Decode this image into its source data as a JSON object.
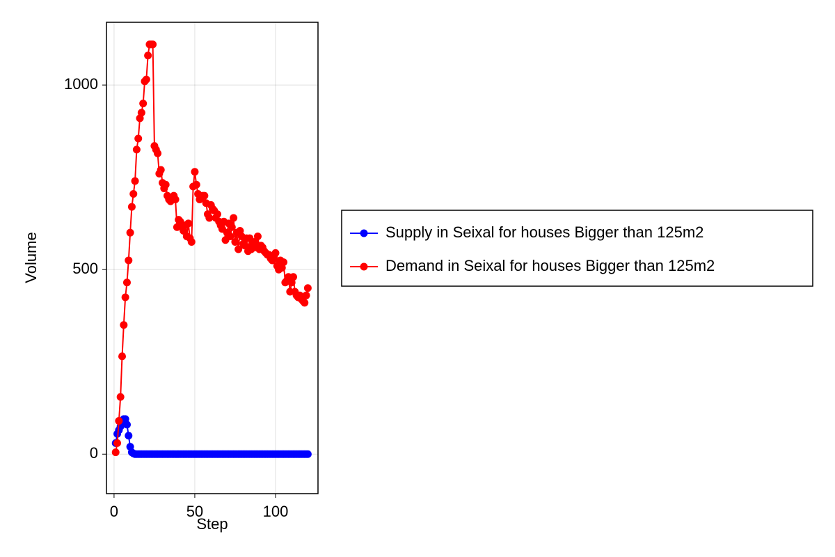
{
  "chart_data": {
    "type": "line",
    "x_label": "Step",
    "y_label": "Volume",
    "x": [
      1,
      2,
      3,
      4,
      5,
      6,
      7,
      8,
      9,
      10,
      11,
      12,
      13,
      14,
      15,
      16,
      17,
      18,
      19,
      20,
      21,
      22,
      23,
      24,
      25,
      26,
      27,
      28,
      29,
      30,
      31,
      32,
      33,
      34,
      35,
      36,
      37,
      38,
      39,
      40,
      41,
      42,
      43,
      44,
      45,
      46,
      47,
      48,
      49,
      50,
      51,
      52,
      53,
      54,
      55,
      56,
      57,
      58,
      59,
      60,
      61,
      62,
      63,
      64,
      65,
      66,
      67,
      68,
      69,
      70,
      71,
      72,
      73,
      74,
      75,
      76,
      77,
      78,
      79,
      80,
      81,
      82,
      83,
      84,
      85,
      86,
      87,
      88,
      89,
      90,
      91,
      92,
      93,
      94,
      95,
      96,
      97,
      98,
      99,
      100,
      101,
      102,
      103,
      104,
      105,
      106,
      107,
      108,
      109,
      110,
      111,
      112,
      113,
      114,
      115,
      116,
      117,
      118,
      119,
      120
    ],
    "series": [
      {
        "name": "Supply in Seixal for houses Bigger than 125m2",
        "color": "#0000ff",
        "values": [
          30,
          55,
          65,
          75,
          85,
          95,
          95,
          80,
          50,
          20,
          5,
          2,
          0,
          0,
          0,
          0,
          0,
          0,
          0,
          0,
          0,
          0,
          0,
          0,
          0,
          0,
          0,
          0,
          0,
          0,
          0,
          0,
          0,
          0,
          0,
          0,
          0,
          0,
          0,
          0,
          0,
          0,
          0,
          0,
          0,
          0,
          0,
          0,
          0,
          0,
          0,
          0,
          0,
          0,
          0,
          0,
          0,
          0,
          0,
          0,
          0,
          0,
          0,
          0,
          0,
          0,
          0,
          0,
          0,
          0,
          0,
          0,
          0,
          0,
          0,
          0,
          0,
          0,
          0,
          0,
          0,
          0,
          0,
          0,
          0,
          0,
          0,
          0,
          0,
          0,
          0,
          0,
          0,
          0,
          0,
          0,
          0,
          0,
          0,
          0,
          0,
          0,
          0,
          0,
          0,
          0,
          0,
          0,
          0,
          0,
          0,
          0,
          0,
          0,
          0,
          0,
          0,
          0,
          0,
          0
        ]
      },
      {
        "name": "Demand in Seixal for houses Bigger than 125m2",
        "color": "#ff0000",
        "values": [
          5,
          30,
          90,
          155,
          265,
          350,
          425,
          465,
          525,
          600,
          670,
          705,
          740,
          825,
          855,
          910,
          925,
          950,
          1010,
          1015,
          1080,
          1110,
          1110,
          1110,
          835,
          825,
          815,
          760,
          770,
          735,
          720,
          730,
          700,
          690,
          685,
          695,
          700,
          690,
          615,
          635,
          630,
          620,
          605,
          620,
          590,
          625,
          585,
          575,
          725,
          765,
          730,
          705,
          690,
          695,
          700,
          700,
          680,
          650,
          640,
          675,
          665,
          660,
          640,
          650,
          630,
          620,
          610,
          630,
          580,
          600,
          625,
          590,
          615,
          640,
          575,
          600,
          555,
          605,
          590,
          570,
          565,
          585,
          550,
          585,
          555,
          565,
          575,
          560,
          590,
          555,
          565,
          560,
          550,
          545,
          540,
          540,
          530,
          525,
          535,
          545,
          510,
          500,
          525,
          505,
          520,
          465,
          470,
          480,
          440,
          465,
          480,
          440,
          430,
          425,
          430,
          420,
          415,
          410,
          430,
          450
        ]
      }
    ],
    "xlim": [
      -4.7,
      126.3
    ],
    "ylim": [
      -107,
      1170
    ],
    "xticks": [
      0,
      50,
      100
    ],
    "yticks": [
      0,
      500,
      1000
    ],
    "grid": true,
    "legend": "right"
  }
}
